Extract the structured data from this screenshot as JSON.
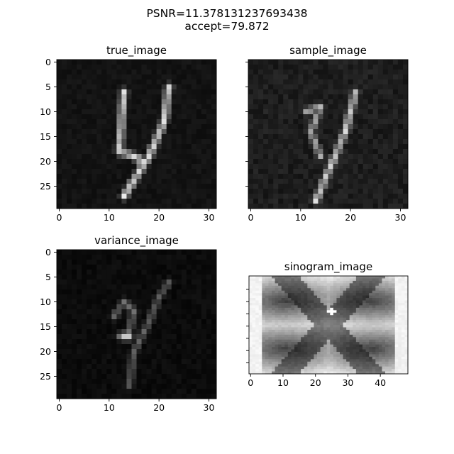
{
  "figure": {
    "suptitle_line1": "PSNR=11.378131237693438",
    "suptitle_line2": "accept=79.872"
  },
  "chart_data": [
    {
      "type": "heatmap",
      "title": "true_image",
      "colormap": "gray",
      "rows": 30,
      "cols": 32,
      "xlim": [
        0,
        31
      ],
      "ylim": [
        29,
        0
      ],
      "xticks": [
        0,
        10,
        20,
        30
      ],
      "yticks": [
        0,
        5,
        10,
        15,
        20,
        25
      ],
      "show_ytick_labels": true,
      "strokes": [
        {
          "points": [
            [
              13,
              6
            ],
            [
              12,
              18
            ],
            [
              15,
              19
            ],
            [
              17,
              20
            ]
          ],
          "intensity": 0.92
        },
        {
          "points": [
            [
              22,
              5
            ],
            [
              21,
              12
            ],
            [
              18,
              19
            ],
            [
              13,
              27
            ]
          ],
          "intensity": 0.95
        }
      ],
      "background": 0.05,
      "noise": 0.05
    },
    {
      "type": "heatmap",
      "title": "sample_image",
      "colormap": "gray",
      "rows": 30,
      "cols": 32,
      "xlim": [
        0,
        31
      ],
      "ylim": [
        29,
        0
      ],
      "xticks": [
        0,
        10,
        20,
        30
      ],
      "yticks": [
        0,
        5,
        10,
        15,
        20,
        25
      ],
      "show_ytick_labels": false,
      "strokes": [
        {
          "points": [
            [
              11,
              10
            ],
            [
              14,
              9
            ],
            [
              12,
              14
            ],
            [
              14,
              19
            ]
          ],
          "intensity": 0.75
        },
        {
          "points": [
            [
              21,
              6
            ],
            [
              19,
              14
            ],
            [
              16,
              21
            ],
            [
              13,
              28
            ]
          ],
          "intensity": 0.9
        },
        {
          "points": [
            [
              3,
              10
            ],
            [
              8,
              9
            ]
          ],
          "intensity": 0.18
        }
      ],
      "background": 0.07,
      "noise": 0.09
    },
    {
      "type": "heatmap",
      "title": "variance_image",
      "colormap": "gray",
      "rows": 30,
      "cols": 32,
      "xlim": [
        0,
        31
      ],
      "ylim": [
        29,
        0
      ],
      "xticks": [
        0,
        10,
        20,
        30
      ],
      "yticks": [
        0,
        5,
        10,
        15,
        20,
        25
      ],
      "show_ytick_labels": true,
      "strokes": [
        {
          "points": [
            [
              11,
              13
            ],
            [
              13,
              10
            ],
            [
              15,
              12
            ],
            [
              14,
              16
            ],
            [
              12,
              17
            ]
          ],
          "intensity": 0.45
        },
        {
          "points": [
            [
              22,
              6
            ],
            [
              20,
              9
            ],
            [
              18,
              14
            ],
            [
              15,
              20
            ],
            [
              14,
              27
            ]
          ],
          "intensity": 0.4
        },
        {
          "points": [
            [
              13,
              17
            ],
            [
              14,
              17
            ]
          ],
          "intensity": 0.95
        }
      ],
      "background": 0.02,
      "noise": 0.05
    },
    {
      "type": "heatmap",
      "title": "sinogram_image",
      "colormap": "gray",
      "rows": 40,
      "cols": 49,
      "xlim": [
        0,
        48
      ],
      "ylim": [
        39,
        0
      ],
      "xticks": [
        0,
        10,
        20,
        30,
        40
      ],
      "yticks": [
        5,
        10,
        15,
        20,
        25,
        30,
        35
      ],
      "show_ytick_labels": false,
      "sinogram": true
    }
  ]
}
